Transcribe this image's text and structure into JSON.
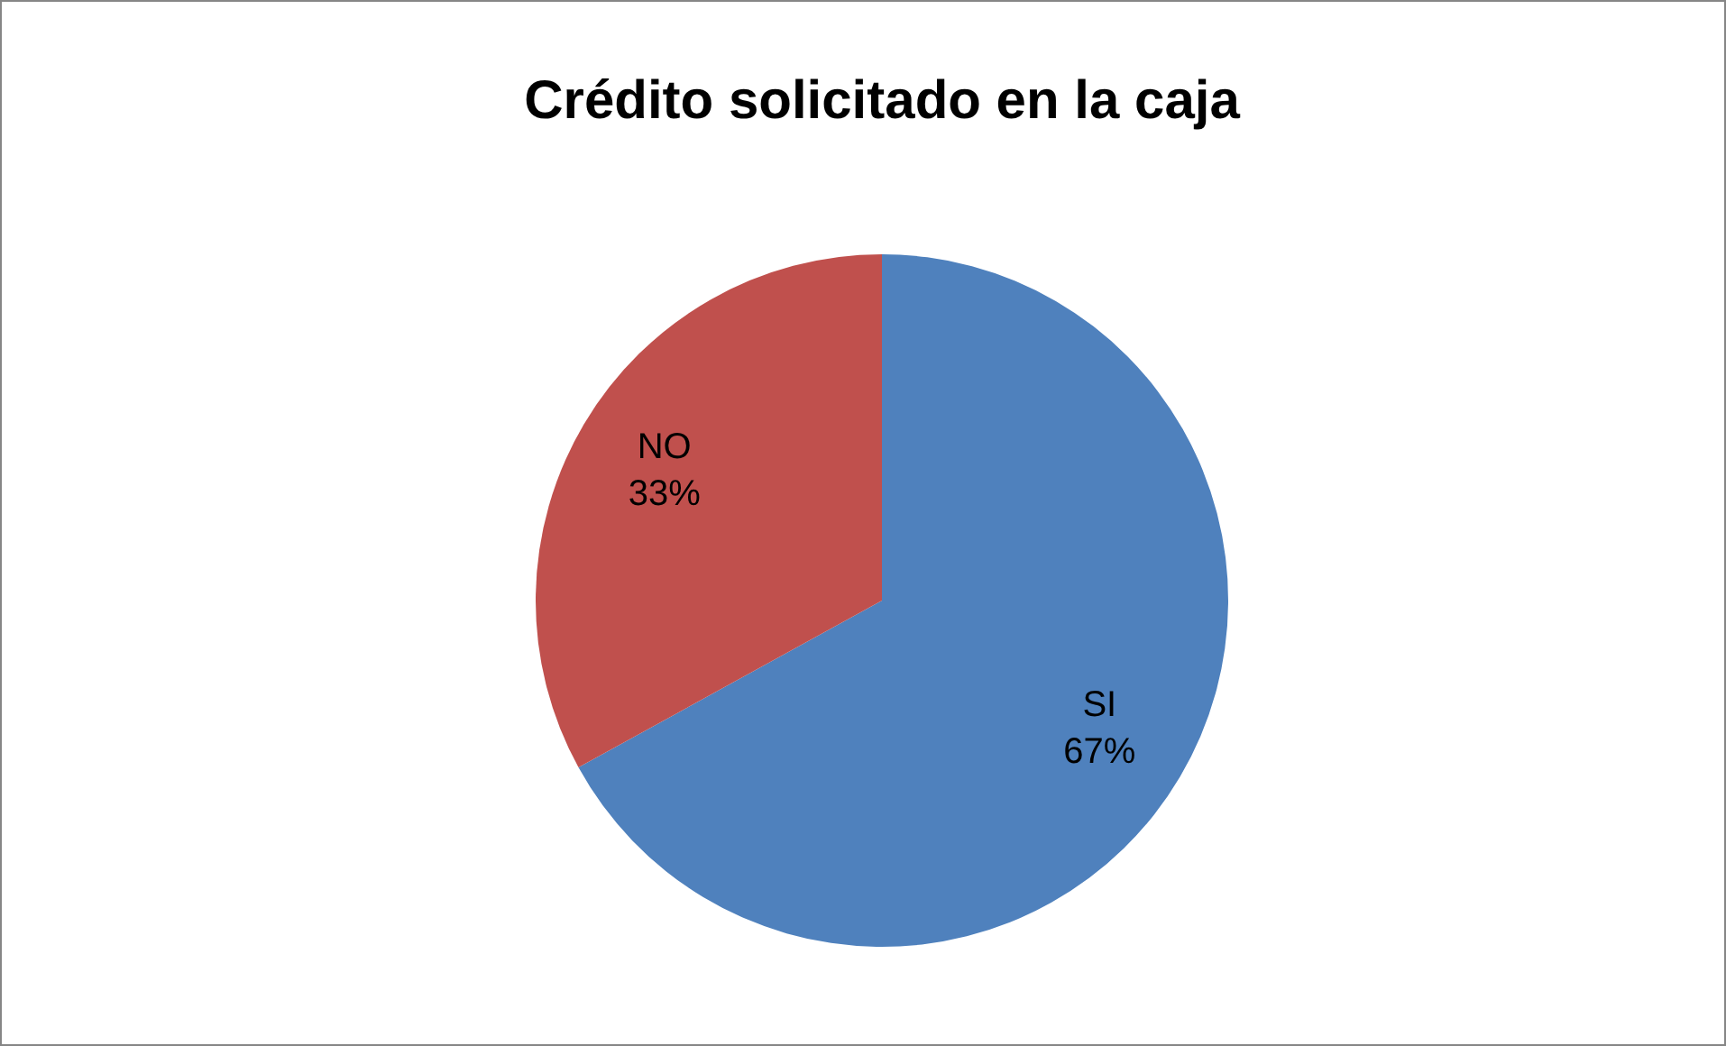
{
  "chart_data": {
    "type": "pie",
    "title": "Crédito solicitado en la caja",
    "categories": [
      "SI",
      "NO"
    ],
    "values": [
      67,
      33
    ],
    "value_labels": [
      "67%",
      "33%"
    ],
    "colors": [
      "#4f81bd",
      "#c0504d"
    ],
    "legend": false
  }
}
